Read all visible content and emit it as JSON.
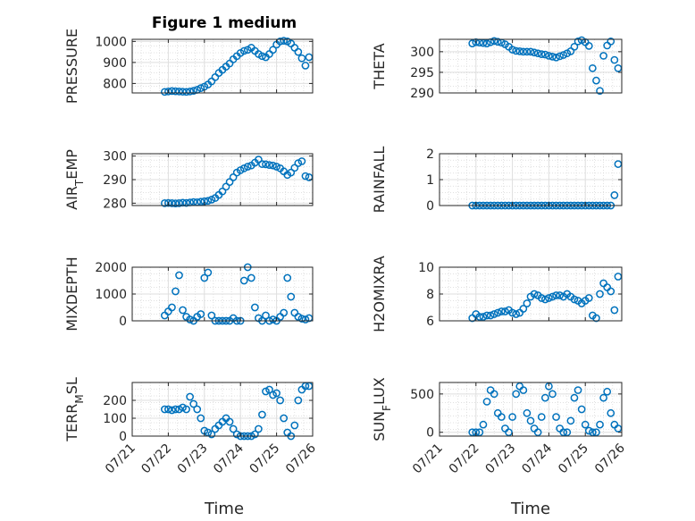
{
  "figure": {
    "title": "Figure 1 medium",
    "marker_color": "#0072BD",
    "x_axis_label": "Time",
    "x_tick_labels": [
      "07/21",
      "07/22",
      "07/23",
      "07/24",
      "07/25",
      "07/26"
    ]
  },
  "chart_data": [
    {
      "type": "scatter",
      "title": "Figure 1 medium",
      "ylabel": "PRESSURE",
      "grid": true,
      "xlim": [
        0,
        5
      ],
      "ylim": [
        755,
        1010
      ],
      "yticks": [
        800,
        900,
        1000
      ],
      "x": [
        0.9,
        1.0,
        1.1,
        1.2,
        1.3,
        1.4,
        1.5,
        1.6,
        1.7,
        1.8,
        1.9,
        2.0,
        2.1,
        2.2,
        2.3,
        2.4,
        2.5,
        2.6,
        2.7,
        2.8,
        2.9,
        3.0,
        3.1,
        3.2,
        3.3,
        3.4,
        3.5,
        3.6,
        3.7,
        3.8,
        3.9,
        4.0,
        4.1,
        4.2,
        4.3,
        4.4,
        4.5,
        4.6,
        4.7,
        4.8,
        4.9
      ],
      "y": [
        760,
        762,
        764,
        763,
        762,
        761,
        760,
        762,
        765,
        770,
        778,
        785,
        795,
        810,
        830,
        850,
        865,
        880,
        895,
        915,
        930,
        945,
        955,
        960,
        970,
        955,
        940,
        930,
        925,
        940,
        960,
        985,
        1000,
        1003,
        1000,
        990,
        970,
        950,
        920,
        885,
        925
      ]
    },
    {
      "type": "scatter",
      "ylabel": "THETA",
      "grid": true,
      "xlim": [
        0,
        5
      ],
      "ylim": [
        290,
        303
      ],
      "yticks": [
        290,
        295,
        300
      ],
      "x": [
        0.9,
        1.0,
        1.1,
        1.2,
        1.3,
        1.4,
        1.5,
        1.6,
        1.7,
        1.8,
        1.9,
        2.0,
        2.1,
        2.2,
        2.3,
        2.4,
        2.5,
        2.6,
        2.7,
        2.8,
        2.9,
        3.0,
        3.1,
        3.2,
        3.3,
        3.4,
        3.5,
        3.6,
        3.7,
        3.8,
        3.9,
        4.0,
        4.1,
        4.2,
        4.3,
        4.4,
        4.5,
        4.6,
        4.7,
        4.8,
        4.9
      ],
      "y": [
        302,
        302.3,
        302.2,
        302.1,
        302,
        302.3,
        302.6,
        302.4,
        302.2,
        301.8,
        301.2,
        300.5,
        300.2,
        300.1,
        300,
        300,
        300,
        299.8,
        299.6,
        299.4,
        299.3,
        299,
        298.8,
        298.6,
        298.9,
        299.2,
        299.6,
        300.1,
        301.2,
        302.5,
        302.8,
        302.3,
        301.4,
        296,
        293,
        290.5,
        299,
        301.5,
        302.5,
        298,
        296
      ]
    },
    {
      "type": "scatter",
      "ylabel": "AIR_TEMP",
      "grid": true,
      "xlim": [
        0,
        5
      ],
      "ylim": [
        279,
        301
      ],
      "yticks": [
        280,
        290,
        300
      ],
      "x": [
        0.9,
        1.0,
        1.1,
        1.2,
        1.3,
        1.4,
        1.5,
        1.6,
        1.7,
        1.8,
        1.9,
        2.0,
        2.1,
        2.2,
        2.3,
        2.4,
        2.5,
        2.6,
        2.7,
        2.8,
        2.9,
        3.0,
        3.1,
        3.2,
        3.3,
        3.4,
        3.5,
        3.6,
        3.7,
        3.8,
        3.9,
        4.0,
        4.1,
        4.2,
        4.3,
        4.4,
        4.5,
        4.6,
        4.7,
        4.8,
        4.9
      ],
      "y": [
        280,
        280.1,
        280,
        279.9,
        280,
        280.2,
        280.1,
        280.3,
        280.5,
        280.4,
        280.6,
        280.8,
        281,
        281.5,
        282.2,
        283.5,
        285,
        287,
        289,
        291,
        293,
        294,
        294.8,
        295.5,
        296,
        297.2,
        298.5,
        296.6,
        296.5,
        296.2,
        296,
        295.5,
        294.8,
        293.5,
        292,
        293,
        295,
        297,
        297.8,
        291.5,
        291
      ]
    },
    {
      "type": "scatter",
      "ylabel": "RAINFALL",
      "grid": true,
      "xlim": [
        0,
        5
      ],
      "ylim": [
        0,
        2
      ],
      "yticks": [
        0,
        1,
        2
      ],
      "x": [
        0.9,
        1.0,
        1.1,
        1.2,
        1.3,
        1.4,
        1.5,
        1.6,
        1.7,
        1.8,
        1.9,
        2.0,
        2.1,
        2.2,
        2.3,
        2.4,
        2.5,
        2.6,
        2.7,
        2.8,
        2.9,
        3.0,
        3.1,
        3.2,
        3.3,
        3.4,
        3.5,
        3.6,
        3.7,
        3.8,
        3.9,
        4.0,
        4.1,
        4.2,
        4.3,
        4.4,
        4.5,
        4.6,
        4.7,
        4.8,
        4.9
      ],
      "y": [
        0,
        0,
        0,
        0,
        0,
        0,
        0,
        0,
        0,
        0,
        0,
        0,
        0,
        0,
        0,
        0,
        0,
        0,
        0,
        0,
        0,
        0,
        0,
        0,
        0,
        0,
        0,
        0,
        0,
        0,
        0,
        0,
        0,
        0,
        0,
        0,
        0,
        0,
        0,
        0.4,
        1.6
      ]
    },
    {
      "type": "scatter",
      "ylabel": "MIXDEPTH",
      "grid": true,
      "xlim": [
        0,
        5
      ],
      "ylim": [
        0,
        2000
      ],
      "yticks": [
        0,
        1000,
        2000
      ],
      "x": [
        0.9,
        1.0,
        1.1,
        1.2,
        1.3,
        1.4,
        1.5,
        1.6,
        1.7,
        1.8,
        1.9,
        2.0,
        2.1,
        2.2,
        2.3,
        2.4,
        2.5,
        2.6,
        2.7,
        2.8,
        2.9,
        3.0,
        3.1,
        3.2,
        3.3,
        3.4,
        3.5,
        3.6,
        3.7,
        3.8,
        3.9,
        4.0,
        4.1,
        4.2,
        4.3,
        4.4,
        4.5,
        4.6,
        4.7,
        4.8,
        4.9
      ],
      "y": [
        200,
        350,
        500,
        1100,
        1700,
        400,
        150,
        50,
        0,
        150,
        250,
        1600,
        1800,
        200,
        0,
        0,
        0,
        0,
        0,
        100,
        0,
        0,
        1500,
        2000,
        1600,
        500,
        100,
        0,
        200,
        0,
        50,
        0,
        150,
        300,
        1600,
        900,
        300,
        150,
        80,
        50,
        100
      ]
    },
    {
      "type": "scatter",
      "ylabel": "H2OMIXRA",
      "grid": true,
      "xlim": [
        0,
        5
      ],
      "ylim": [
        6,
        10
      ],
      "yticks": [
        6,
        8,
        10
      ],
      "x": [
        0.9,
        1.0,
        1.1,
        1.2,
        1.3,
        1.4,
        1.5,
        1.6,
        1.7,
        1.8,
        1.9,
        2.0,
        2.1,
        2.2,
        2.3,
        2.4,
        2.5,
        2.6,
        2.7,
        2.8,
        2.9,
        3.0,
        3.1,
        3.2,
        3.3,
        3.4,
        3.5,
        3.6,
        3.7,
        3.8,
        3.9,
        4.0,
        4.1,
        4.2,
        4.3,
        4.4,
        4.5,
        4.6,
        4.7,
        4.8,
        4.9
      ],
      "y": [
        6.2,
        6.5,
        6.3,
        6.3,
        6.4,
        6.4,
        6.5,
        6.6,
        6.7,
        6.7,
        6.8,
        6.6,
        6.5,
        6.6,
        6.9,
        7.3,
        7.8,
        8.0,
        7.9,
        7.7,
        7.6,
        7.7,
        7.8,
        7.9,
        7.9,
        7.8,
        8.0,
        7.8,
        7.6,
        7.5,
        7.3,
        7.5,
        7.7,
        6.4,
        6.2,
        8.0,
        8.8,
        8.5,
        8.2,
        6.8,
        9.3
      ]
    },
    {
      "type": "scatter",
      "ylabel": "TERR_MSL",
      "grid": true,
      "xlim": [
        0,
        5
      ],
      "ylim": [
        0,
        300
      ],
      "yticks": [
        0,
        100,
        200
      ],
      "x": [
        0.9,
        1.0,
        1.1,
        1.2,
        1.3,
        1.4,
        1.5,
        1.6,
        1.7,
        1.8,
        1.9,
        2.0,
        2.1,
        2.2,
        2.3,
        2.4,
        2.5,
        2.6,
        2.7,
        2.8,
        2.9,
        3.0,
        3.1,
        3.2,
        3.3,
        3.4,
        3.5,
        3.6,
        3.7,
        3.8,
        3.9,
        4.0,
        4.1,
        4.2,
        4.3,
        4.4,
        4.5,
        4.6,
        4.7,
        4.8,
        4.9
      ],
      "y": [
        150,
        150,
        145,
        150,
        150,
        160,
        150,
        220,
        180,
        150,
        100,
        30,
        20,
        10,
        40,
        60,
        80,
        100,
        80,
        40,
        10,
        0,
        0,
        0,
        0,
        10,
        40,
        120,
        250,
        260,
        230,
        240,
        200,
        100,
        20,
        0,
        60,
        200,
        260,
        280,
        280
      ]
    },
    {
      "type": "scatter",
      "ylabel": "SUN_FLUX",
      "grid": true,
      "xlim": [
        0,
        5
      ],
      "ylim": [
        -50,
        650
      ],
      "yticks": [
        0,
        500
      ],
      "x": [
        0.9,
        1.0,
        1.1,
        1.2,
        1.3,
        1.4,
        1.5,
        1.6,
        1.7,
        1.8,
        1.9,
        2.0,
        2.1,
        2.2,
        2.3,
        2.4,
        2.5,
        2.6,
        2.7,
        2.8,
        2.9,
        3.0,
        3.1,
        3.2,
        3.3,
        3.4,
        3.5,
        3.6,
        3.7,
        3.8,
        3.9,
        4.0,
        4.1,
        4.2,
        4.3,
        4.4,
        4.5,
        4.6,
        4.7,
        4.8,
        4.9
      ],
      "y": [
        0,
        0,
        0,
        100,
        400,
        550,
        500,
        250,
        200,
        50,
        0,
        200,
        500,
        600,
        550,
        250,
        150,
        50,
        0,
        200,
        450,
        600,
        500,
        200,
        50,
        0,
        0,
        150,
        450,
        550,
        300,
        100,
        20,
        0,
        0,
        100,
        450,
        530,
        250,
        100,
        50
      ]
    }
  ]
}
